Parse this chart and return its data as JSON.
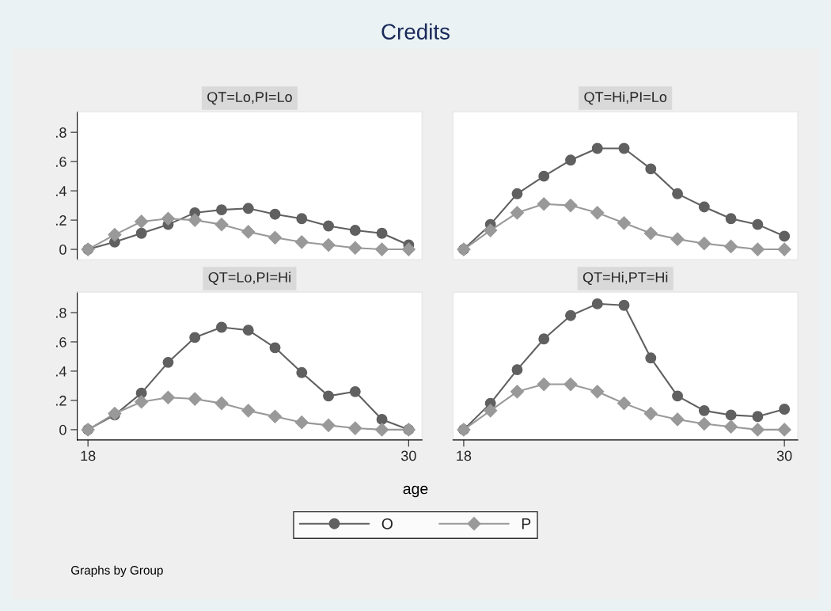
{
  "chart_data": [
    {
      "type": "line",
      "title": "QT=Lo,PI=Lo",
      "annotations": [
        "Credits",
        "age",
        "Graphs by Group"
      ],
      "x": [
        18,
        19,
        20,
        21,
        22,
        23,
        24,
        25,
        26,
        27,
        28,
        29,
        30
      ],
      "xlim": [
        17.6,
        30.5
      ],
      "xticks": [
        18,
        30
      ],
      "ylim": [
        -0.07,
        0.94
      ],
      "yticks": [
        {
          "value": 0,
          "label": "0"
        },
        {
          "value": 0.2,
          "label": ".2"
        },
        {
          "value": 0.4,
          "label": ".4"
        },
        {
          "value": 0.6,
          "label": ".6"
        },
        {
          "value": 0.8,
          "label": ".8"
        }
      ],
      "tick_labels": "y",
      "grid": false,
      "legend": "bottom",
      "series": [
        {
          "name": "O",
          "color": "#606060",
          "marker": "circle",
          "values": [
            0,
            0.05,
            0.11,
            0.17,
            0.25,
            0.27,
            0.28,
            0.24,
            0.21,
            0.16,
            0.13,
            0.11,
            0.03
          ]
        },
        {
          "name": "P",
          "color": "#999999",
          "marker": "diamond",
          "values": [
            0,
            0.1,
            0.19,
            0.21,
            0.2,
            0.17,
            0.12,
            0.08,
            0.05,
            0.03,
            0.01,
            0,
            0
          ]
        }
      ]
    },
    {
      "type": "line",
      "title": "QT=Hi,PI=Lo",
      "x": [
        18,
        19,
        20,
        21,
        22,
        23,
        24,
        25,
        26,
        27,
        28,
        29,
        30
      ],
      "xlim": [
        17.6,
        30.5
      ],
      "xticks": [
        18,
        30
      ],
      "ylim": [
        -0.07,
        0.94
      ],
      "yticks": [
        {
          "value": 0,
          "label": "0"
        },
        {
          "value": 0.2,
          "label": ".2"
        },
        {
          "value": 0.4,
          "label": ".4"
        },
        {
          "value": 0.6,
          "label": ".6"
        },
        {
          "value": 0.8,
          "label": ".8"
        }
      ],
      "tick_labels": false,
      "grid": false,
      "series": [
        {
          "name": "O",
          "color": "#606060",
          "marker": "circle",
          "values": [
            0,
            0.17,
            0.38,
            0.5,
            0.61,
            0.69,
            0.69,
            0.55,
            0.38,
            0.29,
            0.21,
            0.17,
            0.09
          ]
        },
        {
          "name": "P",
          "color": "#999999",
          "marker": "diamond",
          "values": [
            0,
            0.13,
            0.25,
            0.31,
            0.3,
            0.25,
            0.18,
            0.11,
            0.07,
            0.04,
            0.02,
            0,
            0
          ]
        }
      ]
    },
    {
      "type": "line",
      "title": "QT=Lo,PI=Hi",
      "x": [
        18,
        19,
        20,
        21,
        22,
        23,
        24,
        25,
        26,
        27,
        28,
        29,
        30
      ],
      "xlim": [
        17.6,
        30.5
      ],
      "xticks": [
        18,
        30
      ],
      "ylim": [
        -0.07,
        0.94
      ],
      "yticks": [
        {
          "value": 0,
          "label": "0"
        },
        {
          "value": 0.2,
          "label": ".2"
        },
        {
          "value": 0.4,
          "label": ".4"
        },
        {
          "value": 0.6,
          "label": ".6"
        },
        {
          "value": 0.8,
          "label": ".8"
        }
      ],
      "grid": false,
      "series": [
        {
          "name": "O",
          "color": "#606060",
          "marker": "circle",
          "values": [
            0,
            0.1,
            0.25,
            0.46,
            0.63,
            0.7,
            0.68,
            0.56,
            0.39,
            0.23,
            0.26,
            0.07,
            0
          ]
        },
        {
          "name": "P",
          "color": "#999999",
          "marker": "diamond",
          "values": [
            0,
            0.11,
            0.19,
            0.22,
            0.21,
            0.18,
            0.13,
            0.09,
            0.05,
            0.03,
            0.01,
            0,
            0
          ]
        }
      ]
    },
    {
      "type": "line",
      "title": "QT=Hi,PT=Hi",
      "x": [
        18,
        19,
        20,
        21,
        22,
        23,
        24,
        25,
        26,
        27,
        28,
        29,
        30
      ],
      "xlim": [
        17.6,
        30.5
      ],
      "xticks": [
        18,
        30
      ],
      "ylim": [
        -0.07,
        0.94
      ],
      "yticks": [
        {
          "value": 0,
          "label": "0"
        },
        {
          "value": 0.2,
          "label": ".2"
        },
        {
          "value": 0.4,
          "label": ".4"
        },
        {
          "value": 0.6,
          "label": ".6"
        },
        {
          "value": 0.8,
          "label": ".8"
        }
      ],
      "tick_labels": "x",
      "grid": false,
      "series": [
        {
          "name": "O",
          "color": "#606060",
          "marker": "circle",
          "values": [
            0,
            0.18,
            0.41,
            0.62,
            0.78,
            0.86,
            0.85,
            0.49,
            0.23,
            0.13,
            0.1,
            0.09,
            0.14
          ]
        },
        {
          "name": "P",
          "color": "#999999",
          "marker": "diamond",
          "values": [
            0,
            0.13,
            0.26,
            0.31,
            0.31,
            0.26,
            0.18,
            0.11,
            0.07,
            0.04,
            0.02,
            0,
            0
          ]
        }
      ]
    }
  ]
}
